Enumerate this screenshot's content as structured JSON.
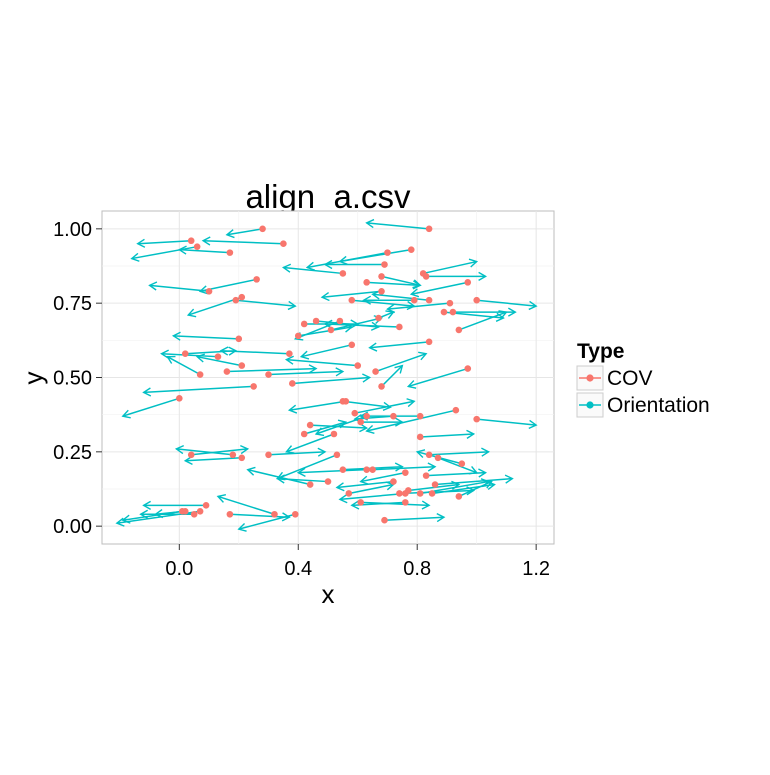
{
  "chart_data": {
    "type": "scatter",
    "title": "align_a.csv",
    "xlabel": "x",
    "ylabel": "y",
    "xlim": [
      -0.26,
      1.26
    ],
    "ylim": [
      -0.06,
      1.06
    ],
    "x_ticks": [
      0.0,
      0.4,
      0.8,
      1.2
    ],
    "x_tick_labels": [
      "0.0",
      "0.4",
      "0.8",
      "1.2"
    ],
    "y_ticks": [
      0.0,
      0.25,
      0.5,
      0.75,
      1.0
    ],
    "y_tick_labels": [
      "0.00",
      "0.25",
      "0.50",
      "0.75",
      "1.00"
    ],
    "grid": true,
    "legend": {
      "title": "Type",
      "position": "right",
      "entries": [
        {
          "label": "COV",
          "color": "#F8766D",
          "kind": "point"
        },
        {
          "label": "Orientation",
          "color": "#00BFC4",
          "kind": "arrow"
        }
      ]
    },
    "colors": {
      "cov": "#F8766D",
      "orientation": "#00BFC4"
    },
    "series": [
      {
        "name": "COV",
        "points": [
          [
            0.28,
            1.0
          ],
          [
            0.84,
            1.0
          ],
          [
            0.04,
            0.96
          ],
          [
            0.06,
            0.94
          ],
          [
            0.35,
            0.95
          ],
          [
            0.17,
            0.92
          ],
          [
            0.7,
            0.92
          ],
          [
            0.78,
            0.93
          ],
          [
            0.55,
            0.85
          ],
          [
            0.68,
            0.84
          ],
          [
            0.69,
            0.88
          ],
          [
            0.82,
            0.85
          ],
          [
            0.83,
            0.84
          ],
          [
            0.26,
            0.83
          ],
          [
            0.1,
            0.79
          ],
          [
            0.21,
            0.77
          ],
          [
            0.19,
            0.76
          ],
          [
            0.58,
            0.76
          ],
          [
            0.68,
            0.79
          ],
          [
            0.63,
            0.82
          ],
          [
            0.79,
            0.76
          ],
          [
            0.84,
            0.76
          ],
          [
            0.97,
            0.82
          ],
          [
            0.91,
            0.75
          ],
          [
            0.89,
            0.72
          ],
          [
            0.92,
            0.72
          ],
          [
            1.0,
            0.76
          ],
          [
            0.51,
            0.66
          ],
          [
            0.42,
            0.68
          ],
          [
            0.46,
            0.69
          ],
          [
            0.54,
            0.69
          ],
          [
            0.67,
            0.7
          ],
          [
            0.74,
            0.67
          ],
          [
            0.94,
            0.66
          ],
          [
            0.2,
            0.63
          ],
          [
            0.4,
            0.64
          ],
          [
            0.84,
            0.62
          ],
          [
            0.02,
            0.58
          ],
          [
            0.13,
            0.57
          ],
          [
            0.21,
            0.54
          ],
          [
            0.37,
            0.58
          ],
          [
            0.58,
            0.61
          ],
          [
            0.6,
            0.54
          ],
          [
            0.66,
            0.52
          ],
          [
            0.07,
            0.51
          ],
          [
            0.16,
            0.52
          ],
          [
            0.3,
            0.51
          ],
          [
            0.38,
            0.48
          ],
          [
            0.25,
            0.47
          ],
          [
            0.68,
            0.47
          ],
          [
            0.97,
            0.53
          ],
          [
            0.0,
            0.43
          ],
          [
            0.55,
            0.42
          ],
          [
            0.56,
            0.42
          ],
          [
            0.59,
            0.38
          ],
          [
            0.63,
            0.37
          ],
          [
            0.72,
            0.37
          ],
          [
            0.81,
            0.37
          ],
          [
            0.93,
            0.39
          ],
          [
            1.0,
            0.36
          ],
          [
            0.44,
            0.34
          ],
          [
            0.42,
            0.31
          ],
          [
            0.52,
            0.31
          ],
          [
            0.61,
            0.35
          ],
          [
            0.81,
            0.3
          ],
          [
            0.04,
            0.24
          ],
          [
            0.18,
            0.24
          ],
          [
            0.21,
            0.23
          ],
          [
            0.3,
            0.24
          ],
          [
            0.53,
            0.24
          ],
          [
            0.84,
            0.24
          ],
          [
            0.87,
            0.23
          ],
          [
            0.95,
            0.21
          ],
          [
            0.55,
            0.19
          ],
          [
            0.63,
            0.19
          ],
          [
            0.65,
            0.19
          ],
          [
            0.76,
            0.18
          ],
          [
            0.83,
            0.17
          ],
          [
            0.44,
            0.14
          ],
          [
            0.5,
            0.15
          ],
          [
            0.57,
            0.11
          ],
          [
            0.72,
            0.15
          ],
          [
            0.74,
            0.11
          ],
          [
            0.76,
            0.11
          ],
          [
            0.77,
            0.12
          ],
          [
            0.81,
            0.11
          ],
          [
            0.85,
            0.11
          ],
          [
            0.86,
            0.14
          ],
          [
            0.94,
            0.1
          ],
          [
            0.09,
            0.07
          ],
          [
            0.01,
            0.05
          ],
          [
            0.02,
            0.05
          ],
          [
            0.05,
            0.04
          ],
          [
            0.07,
            0.05
          ],
          [
            0.17,
            0.04
          ],
          [
            0.32,
            0.04
          ],
          [
            0.39,
            0.04
          ],
          [
            0.61,
            0.08
          ],
          [
            0.76,
            0.08
          ],
          [
            0.69,
            0.02
          ]
        ]
      },
      {
        "name": "Orientation",
        "segments": [
          [
            0.28,
            1.0,
            0.16,
            0.98
          ],
          [
            0.84,
            1.0,
            0.63,
            1.02
          ],
          [
            0.04,
            0.96,
            -0.14,
            0.95
          ],
          [
            0.06,
            0.94,
            -0.16,
            0.9
          ],
          [
            0.35,
            0.95,
            0.08,
            0.96
          ],
          [
            0.17,
            0.92,
            0.0,
            0.93
          ],
          [
            0.7,
            0.92,
            0.43,
            0.87
          ],
          [
            0.78,
            0.93,
            0.54,
            0.89
          ],
          [
            0.55,
            0.85,
            0.35,
            0.87
          ],
          [
            0.68,
            0.84,
            0.81,
            0.81
          ],
          [
            0.69,
            0.88,
            0.49,
            0.88
          ],
          [
            0.82,
            0.85,
            1.0,
            0.89
          ],
          [
            0.83,
            0.84,
            1.03,
            0.84
          ],
          [
            0.26,
            0.83,
            0.07,
            0.79
          ],
          [
            0.1,
            0.79,
            -0.1,
            0.81
          ],
          [
            0.21,
            0.77,
            0.03,
            0.71
          ],
          [
            0.19,
            0.76,
            0.39,
            0.74
          ],
          [
            0.58,
            0.76,
            0.79,
            0.74
          ],
          [
            0.68,
            0.79,
            0.48,
            0.77
          ],
          [
            0.63,
            0.82,
            0.81,
            0.81
          ],
          [
            0.79,
            0.76,
            0.62,
            0.76
          ],
          [
            0.84,
            0.76,
            0.65,
            0.78
          ],
          [
            0.97,
            0.82,
            0.78,
            0.78
          ],
          [
            0.91,
            0.75,
            0.7,
            0.73
          ],
          [
            0.89,
            0.72,
            1.09,
            0.7
          ],
          [
            0.92,
            0.72,
            1.13,
            0.72
          ],
          [
            1.0,
            0.76,
            1.2,
            0.74
          ],
          [
            0.51,
            0.66,
            0.68,
            0.7
          ],
          [
            0.42,
            0.68,
            0.6,
            0.68
          ],
          [
            0.46,
            0.69,
            0.67,
            0.67
          ],
          [
            0.54,
            0.69,
            0.39,
            0.63
          ],
          [
            0.67,
            0.7,
            0.72,
            0.72
          ],
          [
            0.74,
            0.67,
            0.49,
            0.68
          ],
          [
            0.94,
            0.66,
            1.1,
            0.72
          ],
          [
            0.2,
            0.63,
            -0.02,
            0.64
          ],
          [
            0.4,
            0.64,
            0.58,
            0.67
          ],
          [
            0.84,
            0.62,
            0.64,
            0.6
          ],
          [
            0.02,
            0.58,
            0.19,
            0.59
          ],
          [
            0.13,
            0.57,
            -0.06,
            0.58
          ],
          [
            0.21,
            0.54,
            0.06,
            0.57
          ],
          [
            0.37,
            0.58,
            0.14,
            0.59
          ],
          [
            0.58,
            0.61,
            0.41,
            0.57
          ],
          [
            0.6,
            0.54,
            0.36,
            0.56
          ],
          [
            0.66,
            0.52,
            0.83,
            0.58
          ],
          [
            0.07,
            0.51,
            -0.04,
            0.57
          ],
          [
            0.16,
            0.52,
            0.46,
            0.53
          ],
          [
            0.3,
            0.51,
            0.55,
            0.52
          ],
          [
            0.38,
            0.48,
            0.64,
            0.5
          ],
          [
            0.25,
            0.47,
            -0.12,
            0.45
          ],
          [
            0.68,
            0.47,
            0.75,
            0.54
          ],
          [
            0.97,
            0.53,
            0.77,
            0.47
          ],
          [
            0.0,
            0.43,
            -0.19,
            0.37
          ],
          [
            0.55,
            0.42,
            0.71,
            0.4
          ],
          [
            0.56,
            0.42,
            0.37,
            0.39
          ],
          [
            0.59,
            0.38,
            0.79,
            0.42
          ],
          [
            0.63,
            0.37,
            0.46,
            0.31
          ],
          [
            0.72,
            0.37,
            0.59,
            0.36
          ],
          [
            0.81,
            0.37,
            0.61,
            0.37
          ],
          [
            0.93,
            0.39,
            0.63,
            0.32
          ],
          [
            1.0,
            0.36,
            1.2,
            0.34
          ],
          [
            0.44,
            0.34,
            0.63,
            0.33
          ],
          [
            0.42,
            0.31,
            0.56,
            0.35
          ],
          [
            0.52,
            0.31,
            0.36,
            0.25
          ],
          [
            0.61,
            0.35,
            0.75,
            0.35
          ],
          [
            0.81,
            0.3,
            0.99,
            0.31
          ],
          [
            0.04,
            0.24,
            0.23,
            0.26
          ],
          [
            0.18,
            0.24,
            -0.01,
            0.26
          ],
          [
            0.21,
            0.23,
            0.02,
            0.22
          ],
          [
            0.3,
            0.24,
            0.49,
            0.25
          ],
          [
            0.53,
            0.24,
            0.33,
            0.16
          ],
          [
            0.84,
            0.24,
            1.04,
            0.25
          ],
          [
            0.87,
            0.23,
            1.0,
            0.18
          ],
          [
            0.95,
            0.21,
            0.8,
            0.25
          ],
          [
            0.55,
            0.19,
            0.75,
            0.2
          ],
          [
            0.63,
            0.19,
            0.4,
            0.18
          ],
          [
            0.65,
            0.19,
            0.86,
            0.2
          ],
          [
            0.76,
            0.18,
            0.61,
            0.15
          ],
          [
            0.83,
            0.17,
            1.03,
            0.18
          ],
          [
            0.44,
            0.14,
            0.23,
            0.19
          ],
          [
            0.5,
            0.15,
            0.33,
            0.16
          ],
          [
            0.57,
            0.11,
            0.72,
            0.14
          ],
          [
            0.72,
            0.15,
            0.53,
            0.13
          ],
          [
            0.74,
            0.11,
            0.99,
            0.12
          ],
          [
            0.76,
            0.11,
            0.54,
            0.09
          ],
          [
            0.77,
            0.12,
            0.94,
            0.14
          ],
          [
            0.81,
            0.11,
            1.04,
            0.15
          ],
          [
            0.85,
            0.11,
            1.06,
            0.14
          ],
          [
            0.86,
            0.14,
            1.12,
            0.16
          ],
          [
            0.94,
            0.1,
            1.05,
            0.15
          ],
          [
            0.09,
            0.07,
            -0.12,
            0.07
          ],
          [
            0.01,
            0.05,
            -0.19,
            0.02
          ],
          [
            0.02,
            0.05,
            -0.08,
            0.04
          ],
          [
            0.05,
            0.04,
            -0.13,
            0.04
          ],
          [
            0.07,
            0.05,
            -0.21,
            0.01
          ],
          [
            0.17,
            0.04,
            0.37,
            0.03
          ],
          [
            0.32,
            0.04,
            0.13,
            0.1
          ],
          [
            0.39,
            0.04,
            0.2,
            -0.01
          ],
          [
            0.61,
            0.08,
            0.84,
            0.07
          ],
          [
            0.76,
            0.08,
            0.58,
            0.07
          ],
          [
            0.69,
            0.02,
            0.89,
            0.03
          ]
        ]
      }
    ]
  }
}
